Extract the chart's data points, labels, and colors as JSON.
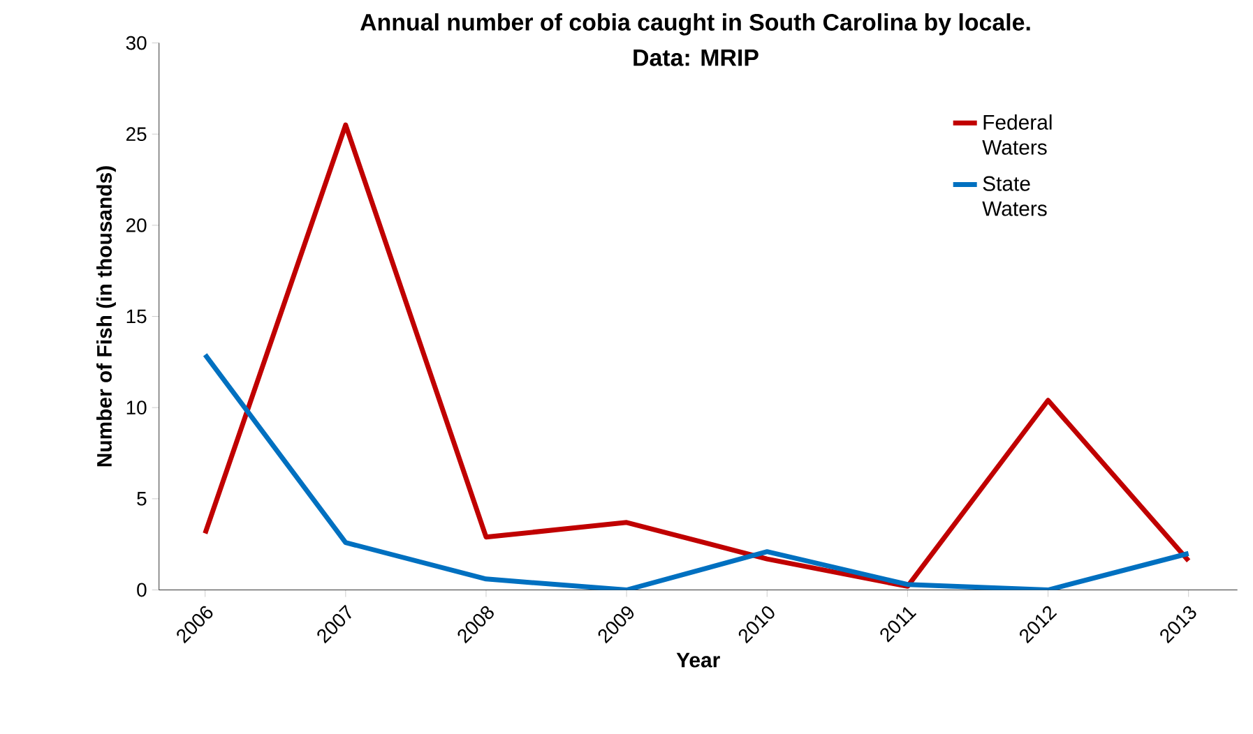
{
  "chart_data": {
    "type": "line",
    "title": "Annual number of cobia caught in South Carolina by locale.",
    "subtitle": "Data: MRIP",
    "xlabel": "Year",
    "ylabel": "Number of Fish (in thousands)",
    "categories": [
      "2006",
      "2007",
      "2008",
      "2009",
      "2010",
      "2011",
      "2012",
      "2013"
    ],
    "series": [
      {
        "name": "Federal Waters",
        "color": "#c00000",
        "values": [
          3.1,
          25.5,
          2.9,
          3.7,
          1.7,
          0.2,
          10.4,
          1.6
        ]
      },
      {
        "name": "State Waters",
        "color": "#0070c0",
        "values": [
          12.9,
          2.6,
          0.6,
          0,
          2.1,
          0.3,
          0,
          2.0
        ]
      }
    ],
    "ylim": [
      0,
      30
    ],
    "yticks": [
      0,
      5,
      10,
      15,
      20,
      25,
      30
    ],
    "grid": false,
    "legend": "top right",
    "marker": "none",
    "line_style": "solid"
  }
}
